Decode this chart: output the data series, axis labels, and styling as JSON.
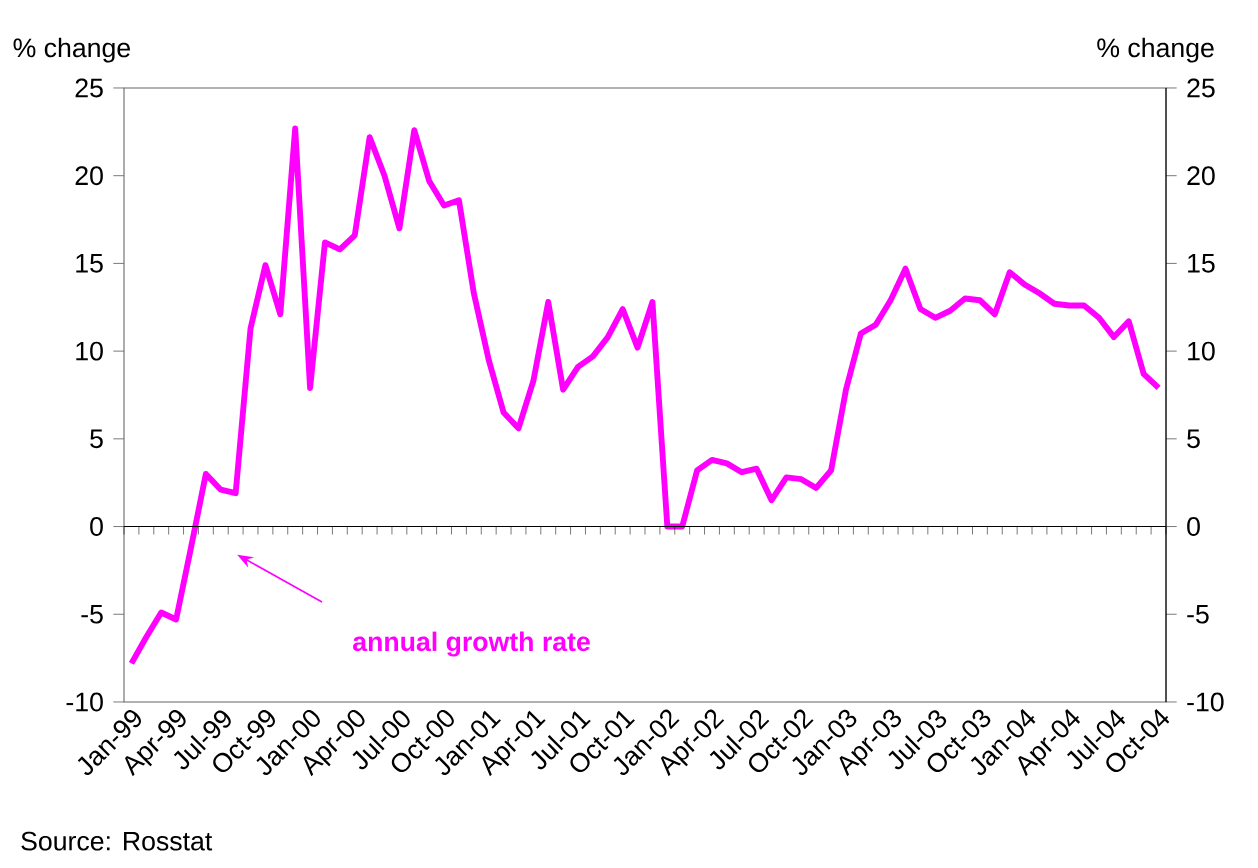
{
  "chart_data": {
    "type": "line",
    "categories": [
      "Jan-99",
      null,
      null,
      "Apr-99",
      null,
      null,
      "Jul-99",
      null,
      null,
      "Oct-99",
      null,
      null,
      "Jan-00",
      null,
      null,
      "Apr-00",
      null,
      null,
      "Jul-00",
      null,
      null,
      "Oct-00",
      null,
      null,
      "Jan-01",
      null,
      null,
      "Apr-01",
      null,
      null,
      "Jul-01",
      null,
      null,
      "Oct-01",
      null,
      null,
      "Jan-02",
      null,
      null,
      "Apr-02",
      null,
      null,
      "Jul-02",
      null,
      null,
      "Oct-02",
      null,
      null,
      "Jan-03",
      null,
      null,
      "Apr-03",
      null,
      null,
      "Jul-03",
      null,
      null,
      "Oct-03",
      null,
      null,
      "Jan-04",
      null,
      null,
      "Apr-04",
      null,
      null,
      "Jul-04",
      null,
      null,
      "Oct-04"
    ],
    "series": [
      {
        "color": "#ff00ff",
        "values": [
          -7.8,
          -6.3,
          -4.9,
          -5.3,
          -1.2,
          3.0,
          2.1,
          1.9,
          11.3,
          14.9,
          12.1,
          22.7,
          7.9,
          16.2,
          15.8,
          16.6,
          22.2,
          20.0,
          17.0,
          22.6,
          19.7,
          18.3,
          18.6,
          13.3,
          9.5,
          6.5,
          5.6,
          8.3,
          12.8,
          7.8,
          9.1,
          9.7,
          10.8,
          12.4,
          10.2,
          12.8,
          0,
          0,
          3.2,
          3.8,
          3.6,
          3.1,
          3.3,
          1.5,
          2.8,
          2.7,
          2.2,
          3.2,
          7.8,
          11.0,
          11.5,
          12.9,
          14.7,
          12.4,
          11.9,
          12.3,
          13.0,
          12.9,
          12.1,
          14.5,
          13.8,
          13.3,
          12.7,
          12.6,
          12.6,
          11.9,
          10.8,
          11.7,
          8.7,
          7.9
        ]
      }
    ],
    "ylabel": "% change",
    "y2label": "% change",
    "ylim": [
      -10,
      25
    ],
    "yticks": [
      -10,
      -5,
      0,
      5,
      10,
      15,
      20,
      25
    ],
    "y2lim": [
      -10,
      25
    ],
    "y2ticks": [
      -10,
      -5,
      0,
      5,
      10,
      15,
      20,
      25
    ],
    "annotations": [
      "annual growth rate",
      "Source: Rosstat"
    ],
    "marker": "none",
    "line_style": "solid"
  }
}
